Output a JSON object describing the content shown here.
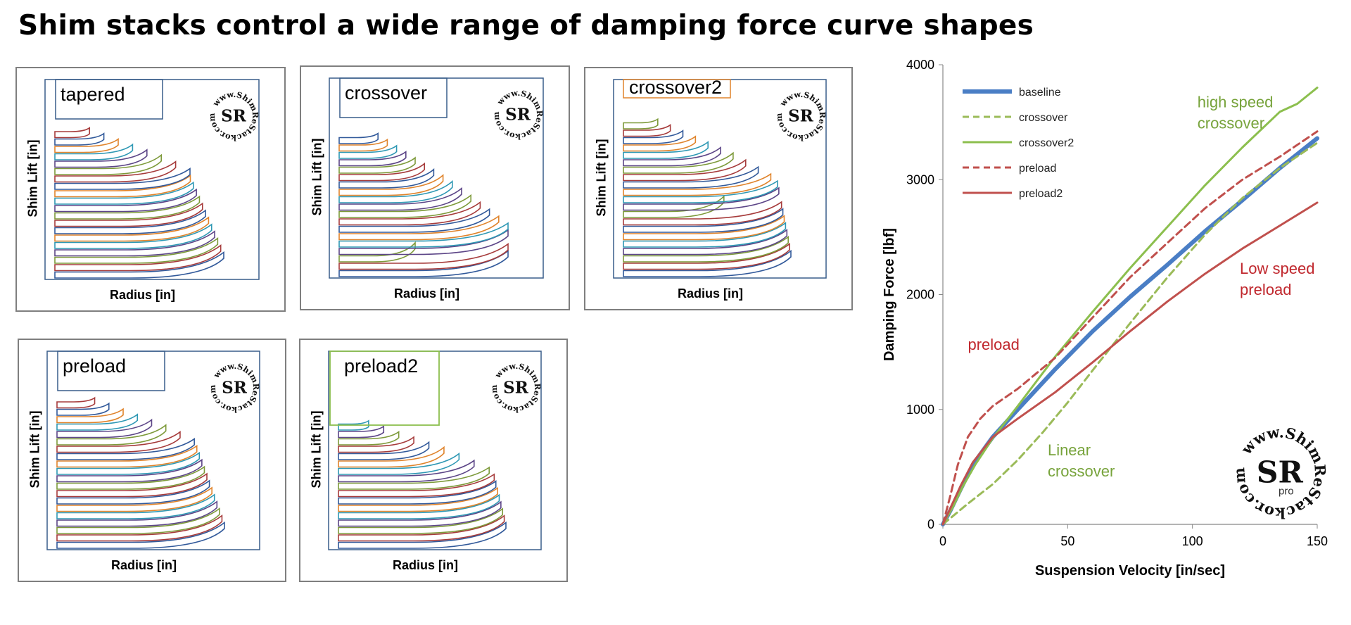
{
  "title": "Shim stacks control a wide range of damping force curve shapes",
  "panels": [
    {
      "label": "tapered",
      "xlabel": "Radius [in]",
      "ylabel": "Shim Lift [in]",
      "logo": "www.ShimReStackor.com"
    },
    {
      "label": "crossover",
      "xlabel": "Radius [in]",
      "ylabel": "Shim Lift [in]",
      "logo": "www.ShimReStackor.com"
    },
    {
      "label": "crossover2",
      "xlabel": "Radius [in]",
      "ylabel": "Shim Lift [in]",
      "logo": "www.ShimReStackor.com"
    },
    {
      "label": "preload",
      "xlabel": "Radius [in]",
      "ylabel": "Shim Lift [in]",
      "logo": "www.ShimReStackor.com"
    },
    {
      "label": "preload2",
      "xlabel": "Radius [in]",
      "ylabel": "Shim Lift [in]",
      "logo": "www.ShimReStackor.com"
    }
  ],
  "shim_colors": [
    "#31599a",
    "#a63b3b",
    "#7d9a3a",
    "#5c4587",
    "#2e98b4",
    "#e0842c"
  ],
  "chart_data": {
    "type": "line",
    "title": "",
    "xlabel": "Suspension Velocity [in/sec]",
    "ylabel": "Damping Force [lbf]",
    "xlim": [
      0,
      150
    ],
    "ylim": [
      0,
      4000
    ],
    "xticks": [
      0,
      50,
      100,
      150
    ],
    "yticks": [
      0,
      1000,
      2000,
      3000,
      4000
    ],
    "legend_position": "top-left",
    "series": [
      {
        "name": "baseline",
        "color": "#4a7ec5",
        "style": "solid",
        "width": "thick",
        "x": [
          0,
          3,
          7,
          12,
          20,
          30,
          45,
          60,
          75,
          90,
          105,
          120,
          135,
          150
        ],
        "y": [
          0,
          120,
          300,
          520,
          760,
          1000,
          1350,
          1680,
          1980,
          2260,
          2550,
          2820,
          3100,
          3360
        ]
      },
      {
        "name": "crossover",
        "color": "#9bbb59",
        "style": "dashed",
        "width": "normal",
        "x": [
          0,
          10,
          20,
          30,
          40,
          50,
          60,
          75,
          90,
          105,
          120,
          135,
          150
        ],
        "y": [
          0,
          180,
          350,
          560,
          800,
          1060,
          1340,
          1750,
          2150,
          2520,
          2840,
          3100,
          3320
        ]
      },
      {
        "name": "crossover2",
        "color": "#8cbf4e",
        "style": "solid",
        "width": "normal",
        "x": [
          0,
          4,
          8,
          13,
          20,
          30,
          45,
          60,
          75,
          90,
          105,
          120,
          135,
          142,
          150
        ],
        "y": [
          0,
          150,
          330,
          520,
          750,
          1030,
          1460,
          1850,
          2230,
          2590,
          2950,
          3280,
          3590,
          3660,
          3800
        ]
      },
      {
        "name": "preload",
        "color": "#c0504d",
        "style": "dashed",
        "width": "normal",
        "x": [
          0,
          3,
          6,
          10,
          15,
          20,
          30,
          45,
          60,
          75,
          90,
          105,
          120,
          135,
          150
        ],
        "y": [
          0,
          250,
          520,
          760,
          920,
          1030,
          1180,
          1450,
          1800,
          2150,
          2450,
          2750,
          3000,
          3200,
          3420
        ]
      },
      {
        "name": "preload2",
        "color": "#c0504d",
        "style": "solid",
        "width": "normal",
        "x": [
          0,
          3,
          7,
          12,
          20,
          30,
          45,
          60,
          75,
          90,
          105,
          120,
          135,
          150
        ],
        "y": [
          0,
          140,
          330,
          540,
          760,
          920,
          1150,
          1410,
          1680,
          1940,
          2180,
          2400,
          2600,
          2800
        ]
      }
    ],
    "annotations": [
      {
        "text": "high speed\ncrossover",
        "color": "#77a33b",
        "at": [
          102,
          3630
        ]
      },
      {
        "text": "Low speed\npreload",
        "color": "#c0272d",
        "at": [
          119,
          2180
        ]
      },
      {
        "text": "preload",
        "color": "#c0272d",
        "at": [
          10,
          1520
        ]
      },
      {
        "text": "Linear\ncrossover",
        "color": "#77a33b",
        "at": [
          42,
          600
        ]
      }
    ],
    "logo": {
      "text": "www.ShimReStackor.com",
      "initials": "SR",
      "badge": "pro"
    }
  }
}
